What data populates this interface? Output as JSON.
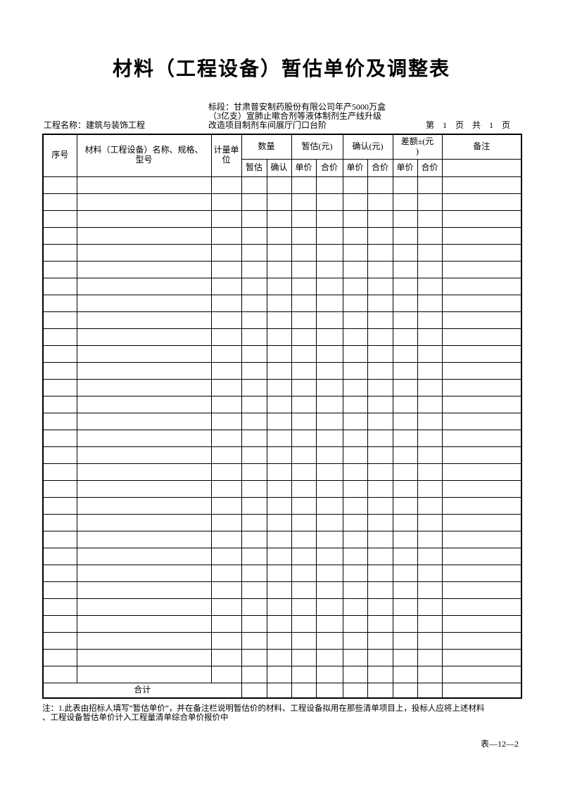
{
  "document": {
    "title": "材料（工程设备）暂估单价及调整表",
    "project_label": "工程名称：建筑与装饰工程",
    "section_lines": [
      "标段：甘肃普安制药股份有限公司年产5000万盒",
      "（3亿支）宣肺止嗽合剂等液体制剂生产线升级",
      "改造项目制剂车间展厅门口台阶"
    ],
    "page_info": "第　1　页　共　1　页",
    "note_lines": [
      "注：1.此表由招标人填写“暂估单价”，并在备注栏说明暂估价的材料、工程设备拟用在那些清单项目上，投标人应将上述材料",
      "、工程设备暂估单价计入工程量清单综合单价报价中"
    ],
    "form_code": "表—12—2"
  },
  "table": {
    "header": {
      "seq": "序号",
      "name": "材料（工程设备）名称、规格、型号",
      "unit": "计量单位",
      "quantity": "数量",
      "estimate": "暂估(元)",
      "confirm": "确认(元)",
      "difference": "差额±(元\n)",
      "remark": "备注",
      "sub": [
        "暂估",
        "确认",
        "单价",
        "合价",
        "单价",
        "合价",
        "单价",
        "合价"
      ]
    },
    "total_label": "合计",
    "empty_row_count": 30,
    "column_count": 12
  }
}
